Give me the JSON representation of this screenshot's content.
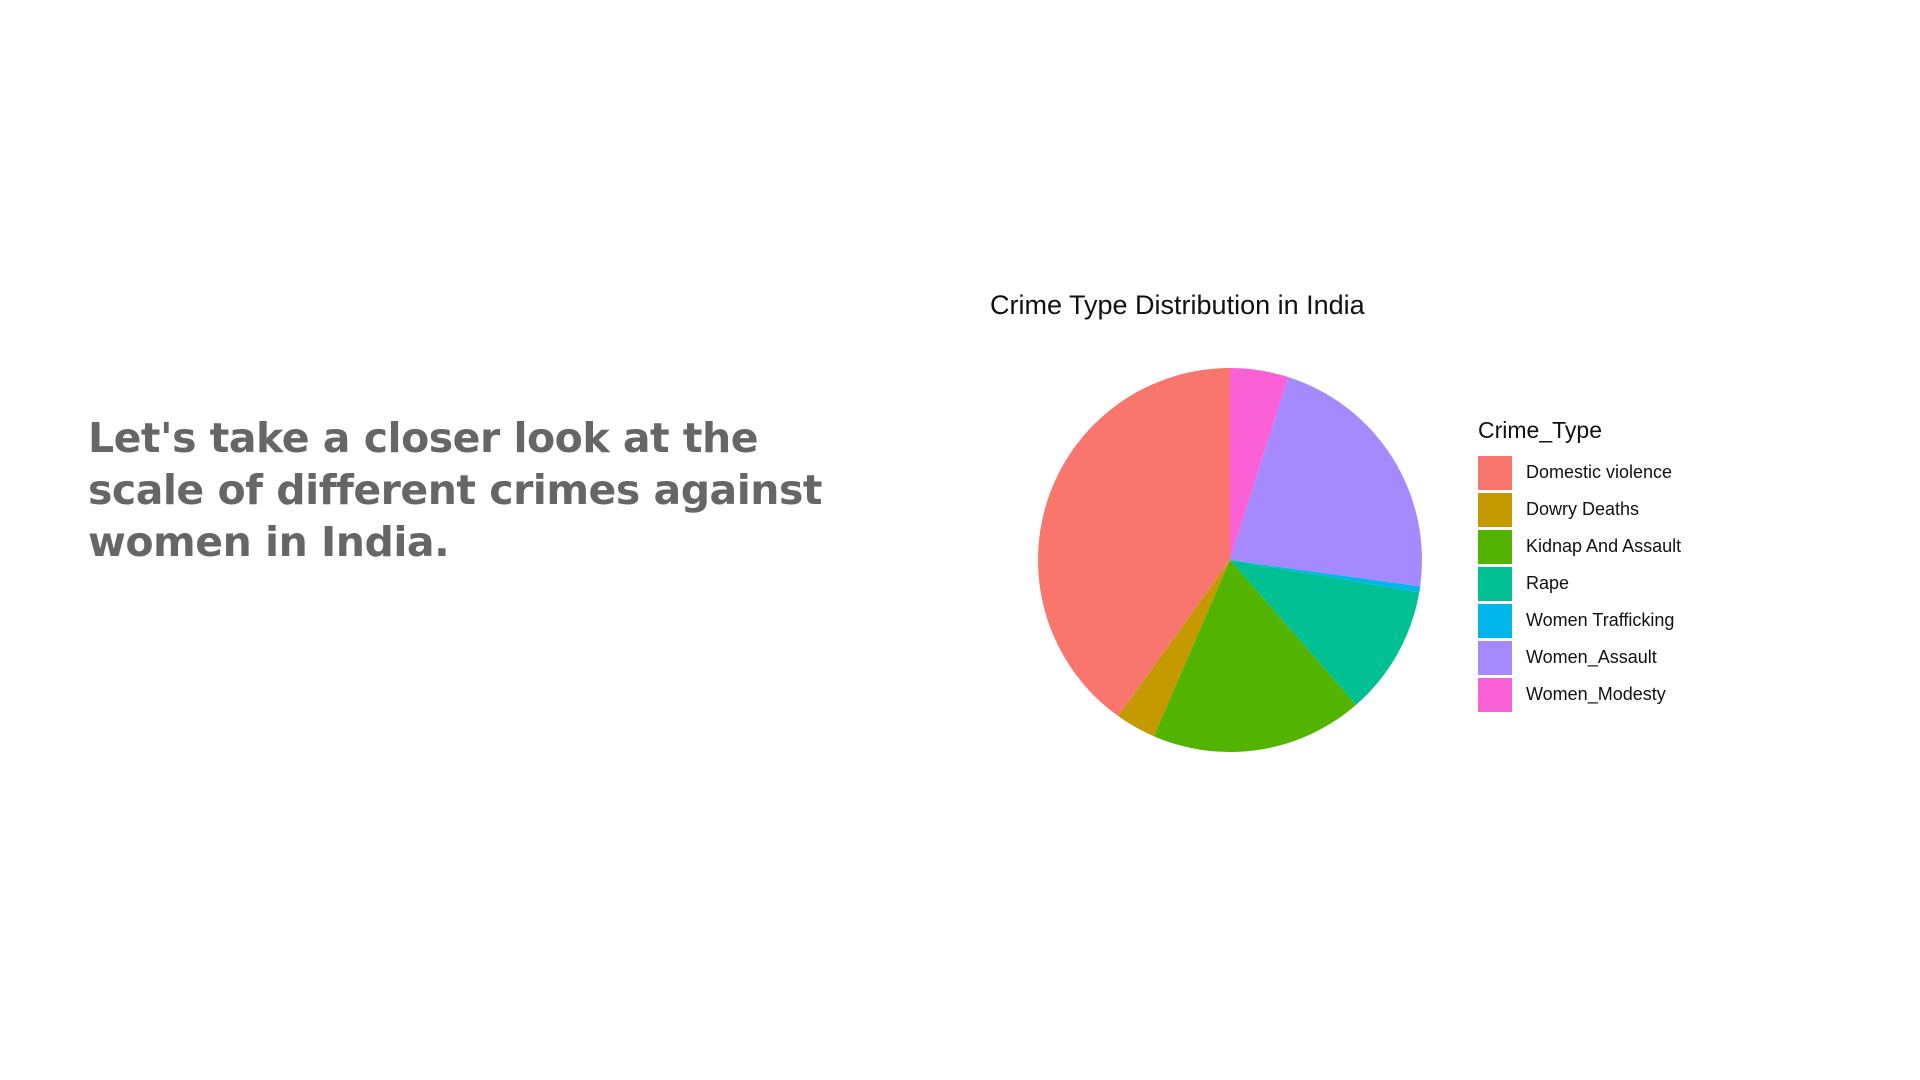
{
  "slide": {
    "text": "Let's take a closer look at the scale of different crimes against women in India."
  },
  "chart_data": {
    "type": "pie",
    "title": "Crime Type Distribution in India",
    "legend_title": "Crime_Type",
    "legend_position": "right",
    "start_angle_deg": 0,
    "direction": "clockwise",
    "categories": [
      "Domestic violence",
      "Dowry Deaths",
      "Kidnap And Assault",
      "Rape",
      "Women Trafficking",
      "Women_Assault",
      "Women_Modesty"
    ],
    "values": [
      40.1,
      3.4,
      17.9,
      10.9,
      0.5,
      22.3,
      4.9
    ],
    "colors": [
      "#F8766D",
      "#C49A00",
      "#53B400",
      "#00C094",
      "#00B6EB",
      "#A58AFF",
      "#FB61D7"
    ],
    "draw_order": [
      "Women_Modesty",
      "Women_Assault",
      "Women Trafficking",
      "Rape",
      "Kidnap And Assault",
      "Dowry Deaths",
      "Domestic violence"
    ]
  }
}
